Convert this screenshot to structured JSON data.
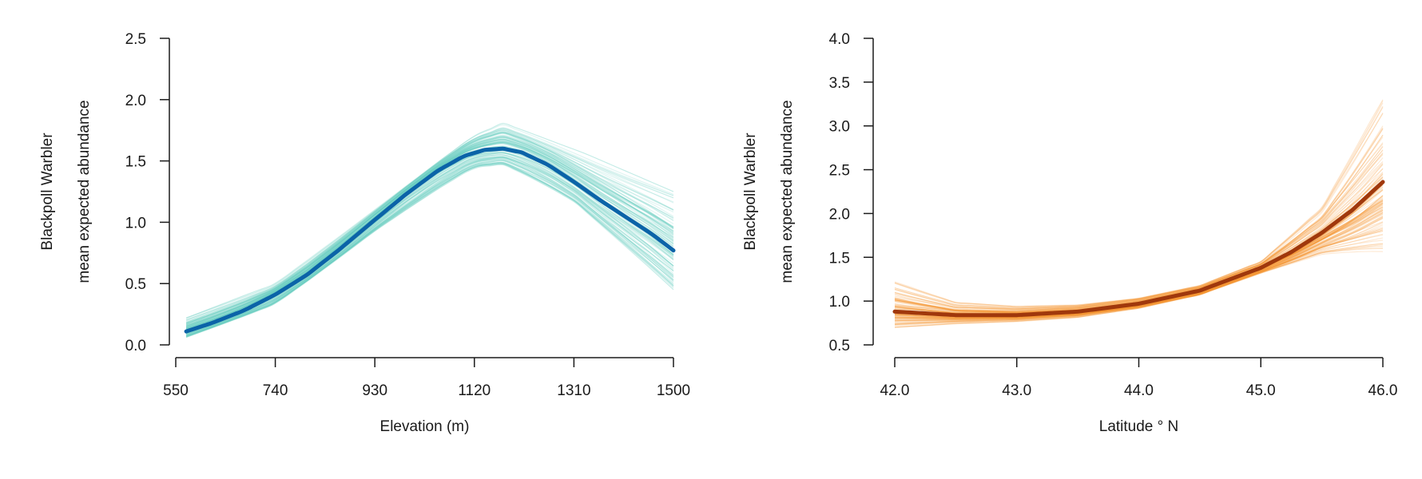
{
  "chart_data": [
    {
      "type": "line",
      "xlabel": "Elevation (m)",
      "ylabel_lines": [
        "Blackpoll Warbler",
        "mean expected abundance"
      ],
      "xlim": [
        550,
        1500
      ],
      "ylim": [
        0.0,
        2.5
      ],
      "xticks": [
        "550",
        "740",
        "930",
        "1120",
        "1310",
        "1500"
      ],
      "yticks": [
        "0.0",
        "0.5",
        "1.0",
        "1.5",
        "2.0",
        "2.5"
      ],
      "colors": {
        "mean_line": "#0b63a8",
        "draws": "#66cfc0"
      },
      "series": [
        {
          "role": "posterior mean",
          "x": [
            570,
            620,
            680,
            740,
            800,
            860,
            930,
            990,
            1050,
            1100,
            1140,
            1175,
            1210,
            1260,
            1310,
            1360,
            1410,
            1460,
            1500
          ],
          "y": [
            0.11,
            0.18,
            0.28,
            0.41,
            0.57,
            0.77,
            1.02,
            1.23,
            1.42,
            1.54,
            1.59,
            1.6,
            1.57,
            1.47,
            1.33,
            1.18,
            1.04,
            0.9,
            0.77
          ]
        }
      ],
      "uncertainty_band": {
        "role": "posterior draws",
        "x": [
          570,
          740,
          930,
          1120,
          1175,
          1310,
          1500
        ],
        "lower": [
          0.06,
          0.32,
          0.9,
          1.4,
          1.42,
          1.12,
          0.4
        ],
        "upper": [
          0.22,
          0.5,
          1.12,
          1.74,
          1.84,
          1.6,
          1.25
        ]
      }
    },
    {
      "type": "line",
      "xlabel": "Latitude ° N",
      "ylabel_lines": [
        "Blackpoll Warbler",
        "mean expected abundance"
      ],
      "xlim": [
        42.0,
        46.0
      ],
      "ylim": [
        0.5,
        4.0
      ],
      "xticks": [
        "42.0",
        "43.0",
        "44.0",
        "45.0",
        "46.0"
      ],
      "yticks": [
        "0.5",
        "1.0",
        "1.5",
        "2.0",
        "2.5",
        "3.0",
        "3.5",
        "4.0"
      ],
      "colors": {
        "mean_line": "#a0380c",
        "draws": "#f79530"
      },
      "series": [
        {
          "role": "posterior mean",
          "x": [
            42.0,
            42.5,
            43.0,
            43.5,
            44.0,
            44.5,
            45.0,
            45.25,
            45.5,
            45.75,
            46.0
          ],
          "y": [
            0.88,
            0.84,
            0.84,
            0.88,
            0.97,
            1.12,
            1.38,
            1.56,
            1.78,
            2.04,
            2.36
          ]
        }
      ],
      "uncertainty_band": {
        "role": "posterior draws",
        "x": [
          42.0,
          42.5,
          43.0,
          43.5,
          44.0,
          44.5,
          45.0,
          45.5,
          46.0
        ],
        "lower": [
          0.7,
          0.74,
          0.76,
          0.8,
          0.9,
          1.05,
          1.3,
          1.5,
          1.55
        ],
        "upper": [
          1.22,
          1.0,
          0.96,
          0.98,
          1.06,
          1.2,
          1.47,
          2.1,
          3.3
        ]
      }
    }
  ]
}
